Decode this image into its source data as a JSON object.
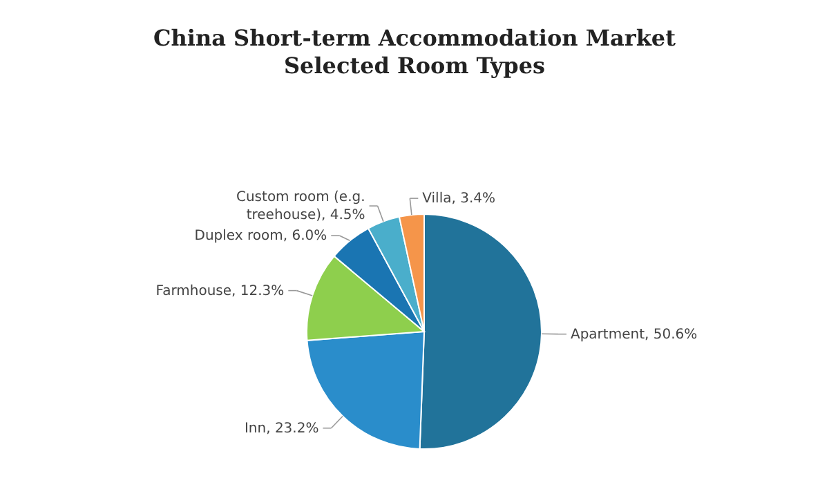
{
  "chart_data": {
    "type": "pie",
    "title": "China Short-term Accommodation Market\nSelected Room Types",
    "categories": [
      "Apartment",
      "Inn",
      "Farmhouse",
      "Duplex room",
      "Custom room (e.g. treehouse)",
      "Villa"
    ],
    "values": [
      50.6,
      23.2,
      12.3,
      6.0,
      4.5,
      3.4
    ],
    "value_labels": [
      "50.6%",
      "23.2%",
      "12.3%",
      "6.0%",
      "4.5%",
      "3.4%"
    ],
    "colors": [
      "#21739a",
      "#2a8dcb",
      "#8ecf4d",
      "#1a75b2",
      "#4aaecb",
      "#f5954a"
    ],
    "legend": false
  }
}
